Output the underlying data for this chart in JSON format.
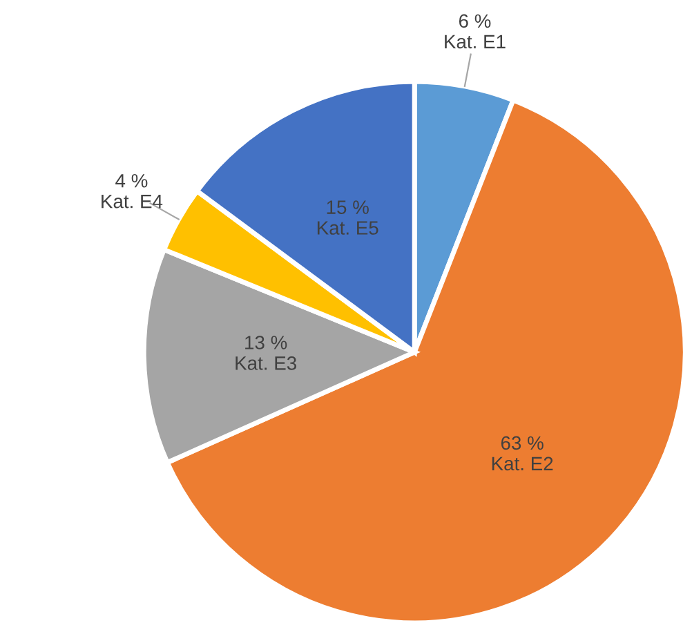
{
  "chart_data": {
    "type": "pie",
    "categories": [
      "Kat. E1",
      "Kat. E2",
      "Kat. E3",
      "Kat. E4",
      "Kat. E5"
    ],
    "values": [
      6,
      63,
      13,
      4,
      15
    ],
    "value_labels": [
      "6 %",
      "63 %",
      "13 %",
      "4 %",
      "15 %"
    ],
    "colors": [
      "#5b9bd5",
      "#ed7d31",
      "#a5a5a5",
      "#ffc000",
      "#4472c4"
    ]
  }
}
